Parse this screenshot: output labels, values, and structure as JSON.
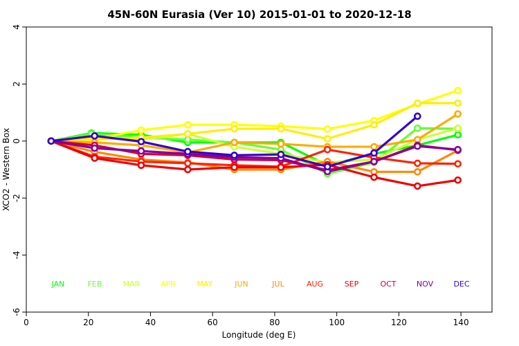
{
  "chart_data": {
    "type": "line",
    "title": "45N-60N Eurasia (Ver 10)   2015-01-01 to 2020-12-18",
    "xlabel": "Longitude (deg E)",
    "ylabel": "XCO2 - Western Box",
    "xlim": [
      0,
      150
    ],
    "ylim": [
      -6,
      4
    ],
    "xticks": [
      "0",
      "20",
      "40",
      "60",
      "80",
      "100",
      "120",
      "140"
    ],
    "yticks": [
      "-6",
      "-4",
      "-2",
      "0",
      "2",
      "4"
    ],
    "grid": false,
    "legend_placement": "inside-bottom",
    "series": [
      {
        "name": "JAN",
        "color": "#00ff00",
        "points": [
          [
            8,
            0
          ],
          [
            21,
            0.28
          ],
          [
            37,
            0.22
          ],
          [
            52,
            -0.05
          ],
          [
            67,
            -0.05
          ],
          [
            82,
            -0.05
          ],
          [
            97,
            -0.85
          ],
          [
            112,
            -0.45
          ],
          [
            126,
            -0.15
          ],
          [
            139,
            0.22
          ]
        ]
      },
      {
        "name": "FEB",
        "color": "#66ff33",
        "points": [
          [
            8,
            0
          ],
          [
            21,
            0.25
          ],
          [
            37,
            0.12
          ],
          [
            52,
            0.05
          ],
          [
            67,
            -0.05
          ],
          [
            82,
            -0.3
          ],
          [
            97,
            -1.15
          ],
          [
            112,
            -0.75
          ],
          [
            126,
            0.45
          ],
          [
            139,
            0.43
          ]
        ]
      },
      {
        "name": "MAR",
        "color": "#ccff33",
        "points": [
          [
            8,
            0
          ],
          [
            22,
            0.1
          ],
          [
            37,
            0.05
          ],
          [
            52,
            0.25
          ],
          [
            67,
            -0.2
          ],
          [
            82,
            -0.45
          ],
          [
            97,
            -0.75
          ],
          [
            112,
            -0.65
          ],
          [
            126,
            0.05
          ],
          [
            139,
            0.45
          ]
        ]
      },
      {
        "name": "APR",
        "color": "#ffff00",
        "points": [
          [
            8,
            0
          ],
          [
            22,
            0.08
          ],
          [
            37,
            0.38
          ],
          [
            52,
            0.57
          ],
          [
            67,
            0.57
          ],
          [
            82,
            0.52
          ],
          [
            97,
            0.42
          ],
          [
            112,
            0.72
          ],
          [
            126,
            1.3
          ],
          [
            139,
            1.77
          ]
        ]
      },
      {
        "name": "MAY",
        "color": "#ffee00",
        "points": [
          [
            8,
            0
          ],
          [
            22,
            0.05
          ],
          [
            37,
            0.12
          ],
          [
            52,
            0.25
          ],
          [
            67,
            0.43
          ],
          [
            82,
            0.43
          ],
          [
            97,
            0.08
          ],
          [
            112,
            0.57
          ],
          [
            126,
            1.33
          ],
          [
            139,
            1.33
          ]
        ]
      },
      {
        "name": "JUN",
        "color": "#ffaa00",
        "points": [
          [
            8,
            0
          ],
          [
            22,
            -0.05
          ],
          [
            37,
            -0.15
          ],
          [
            52,
            -0.4
          ],
          [
            67,
            -0.05
          ],
          [
            82,
            -0.1
          ],
          [
            97,
            -0.2
          ],
          [
            112,
            -0.2
          ],
          [
            126,
            0.05
          ],
          [
            139,
            0.95
          ]
        ]
      },
      {
        "name": "JUL",
        "color": "#ff8800",
        "points": [
          [
            8,
            0
          ],
          [
            22,
            -0.38
          ],
          [
            37,
            -0.65
          ],
          [
            52,
            -0.75
          ],
          [
            67,
            -1.0
          ],
          [
            82,
            -1.0
          ],
          [
            97,
            -0.72
          ],
          [
            112,
            -1.08
          ],
          [
            126,
            -1.08
          ],
          [
            139,
            -0.33
          ]
        ]
      },
      {
        "name": "AUG",
        "color": "#ff2200",
        "points": [
          [
            8,
            0
          ],
          [
            22,
            -0.55
          ],
          [
            37,
            -0.72
          ],
          [
            52,
            -0.78
          ],
          [
            67,
            -0.85
          ],
          [
            82,
            -0.9
          ],
          [
            97,
            -0.3
          ],
          [
            112,
            -0.58
          ],
          [
            126,
            -0.78
          ],
          [
            139,
            -0.8
          ]
        ]
      },
      {
        "name": "SEP",
        "color": "#ee0000",
        "points": [
          [
            8,
            0
          ],
          [
            22,
            -0.6
          ],
          [
            37,
            -0.85
          ],
          [
            52,
            -1.0
          ],
          [
            67,
            -0.92
          ],
          [
            82,
            -0.92
          ],
          [
            97,
            -0.83
          ],
          [
            112,
            -1.27
          ],
          [
            126,
            -1.58
          ],
          [
            139,
            -1.37
          ]
        ]
      },
      {
        "name": "OCT",
        "color": "#cc0044",
        "points": [
          [
            8,
            0
          ],
          [
            22,
            -0.15
          ],
          [
            37,
            -0.45
          ],
          [
            52,
            -0.5
          ],
          [
            67,
            -0.65
          ],
          [
            82,
            -0.67
          ],
          [
            97,
            -1.02
          ],
          [
            112,
            -0.72
          ],
          [
            126,
            -0.15
          ],
          [
            139,
            -0.32
          ]
        ]
      },
      {
        "name": "NOV",
        "color": "#880099",
        "points": [
          [
            8,
            0
          ],
          [
            22,
            -0.25
          ],
          [
            37,
            -0.35
          ],
          [
            52,
            -0.45
          ],
          [
            67,
            -0.57
          ],
          [
            82,
            -0.6
          ],
          [
            97,
            -1.07
          ],
          [
            112,
            -0.72
          ],
          [
            126,
            -0.18
          ],
          [
            139,
            -0.3
          ]
        ]
      },
      {
        "name": "DEC",
        "color": "#3300cc",
        "points": [
          [
            8,
            0
          ],
          [
            22,
            0.18
          ],
          [
            37,
            -0.02
          ],
          [
            52,
            -0.37
          ],
          [
            67,
            -0.5
          ],
          [
            82,
            -0.47
          ],
          [
            97,
            -0.9
          ],
          [
            112,
            -0.42
          ],
          [
            126,
            0.87
          ]
        ]
      }
    ]
  }
}
